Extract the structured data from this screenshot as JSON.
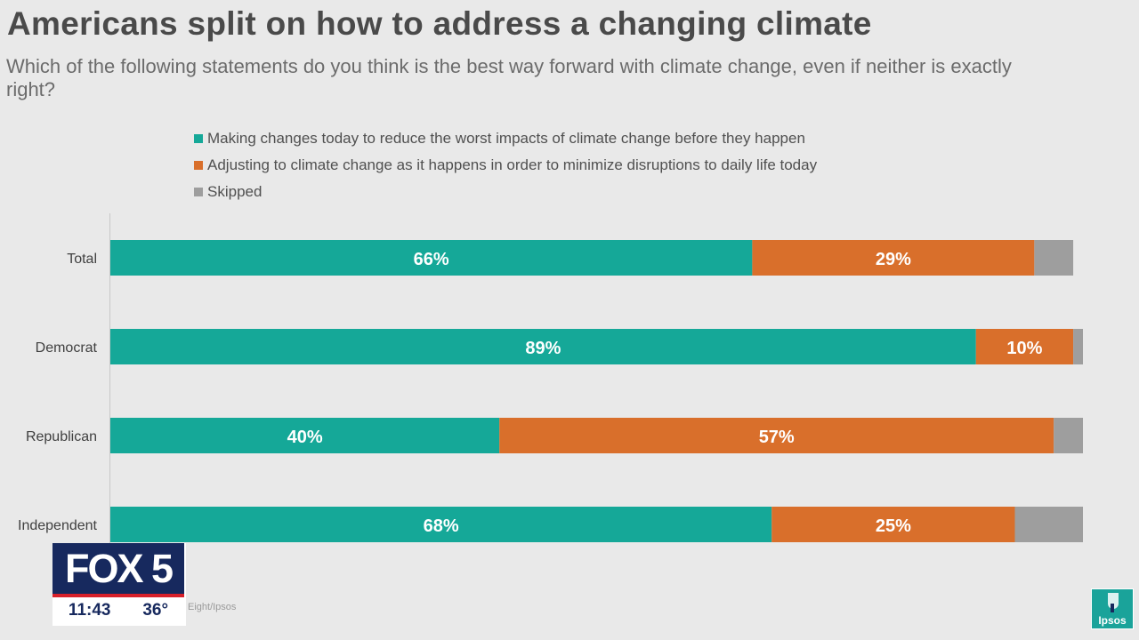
{
  "title": "Americans split on how to address a changing climate",
  "subtitle": "Which of the following statements do you think is the best way forward with climate change, even if neither is exactly right?",
  "chart_data": {
    "type": "bar",
    "orientation": "horizontal",
    "stacked": true,
    "categories": [
      "Total",
      "Democrat",
      "Republican",
      "Independent"
    ],
    "series": [
      {
        "name": "Making changes today to reduce the worst impacts of climate change before they happen",
        "color": "#15a898",
        "values": [
          66,
          89,
          40,
          68
        ],
        "labels": [
          "66%",
          "89%",
          "40%",
          "68%"
        ]
      },
      {
        "name": "Adjusting to climate change as it happens in order to minimize disruptions to daily life today",
        "color": "#d96f2b",
        "values": [
          29,
          10,
          57,
          25
        ],
        "labels": [
          "29%",
          "10%",
          "57%",
          "25%"
        ]
      },
      {
        "name": "Skipped",
        "color": "#9e9e9e",
        "values": [
          4,
          1,
          3,
          7
        ],
        "labels": [
          "",
          "",
          "",
          ""
        ]
      }
    ],
    "xlim": [
      0,
      100
    ],
    "legend": "top"
  },
  "overlay": {
    "station": "FOX 5",
    "time": "11:43",
    "temperature": "36°",
    "source_fragment": "Eight/Ipsos",
    "brand": "Ipsos"
  }
}
